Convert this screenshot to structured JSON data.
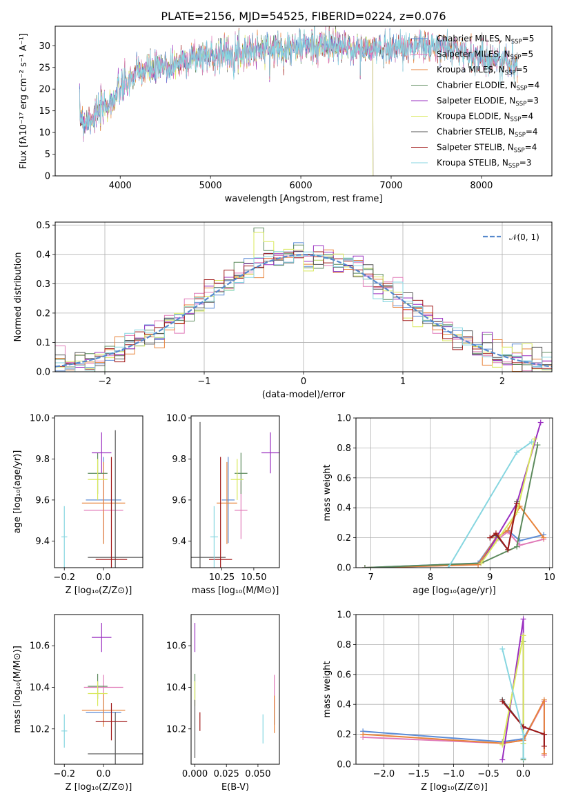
{
  "figure": {
    "title": "PLATE=2156, MJD=54525, FIBERID=0224, z=0.076"
  },
  "colors": {
    "chabrier_miles": "#5b8bd6",
    "salpeter_miles": "#e07ab8",
    "kroupa_miles": "#e8833a",
    "chabrier_elodie": "#5c8a5c",
    "salpeter_elodie": "#9a2fc0",
    "kroupa_elodie": "#d8e85a",
    "chabrier_stelib": "#555555",
    "salpeter_stelib": "#a01818",
    "kroupa_stelib": "#86d6e0"
  },
  "chart_data": [
    {
      "id": "spectrum",
      "type": "line",
      "xlabel": "wavelength [Angstrom, rest frame]",
      "ylabel": "Flux [fλ10⁻¹⁷ erg cm⁻² s⁻¹ A⁻¹]",
      "xlim": [
        3280,
        8780
      ],
      "ylim": [
        0,
        34.5
      ],
      "xticks": [
        4000,
        5000,
        6000,
        7000,
        8000
      ],
      "yticks": [
        0,
        5,
        10,
        15,
        20,
        25,
        30
      ],
      "continuum_x": [
        3550,
        3600,
        3700,
        3800,
        3900,
        4000,
        4100,
        4200,
        4300,
        4500,
        4700,
        4900,
        5100,
        5300,
        5500,
        5700,
        5900,
        6100,
        6300,
        6500,
        6700,
        6900,
        7100,
        7300,
        7500,
        7700,
        7900,
        8100,
        8300,
        8400
      ],
      "continuum_y": [
        14.0,
        12.5,
        13.5,
        15.5,
        17.0,
        20.0,
        22.0,
        24.0,
        24.5,
        25.0,
        26.5,
        27.5,
        28.0,
        28.5,
        29.0,
        29.5,
        29.5,
        30.0,
        30.0,
        29.5,
        29.0,
        29.5,
        29.5,
        30.0,
        29.5,
        29.0,
        28.0,
        27.0,
        26.0,
        25.5
      ],
      "legend_position": "upper right",
      "legend": [
        {
          "label": "Chabrier MILES, N",
          "sub": "SSP",
          "suffix": "=5",
          "color_key": "chabrier_miles"
        },
        {
          "label": "Salpeter MILES, N",
          "sub": "SSP",
          "suffix": "=5",
          "color_key": "salpeter_miles"
        },
        {
          "label": "Kroupa MILES, N",
          "sub": "SSP",
          "suffix": "=5",
          "color_key": "kroupa_miles"
        },
        {
          "label": "Chabrier ELODIE, N",
          "sub": "SSP",
          "suffix": "=4",
          "color_key": "chabrier_elodie"
        },
        {
          "label": "Salpeter ELODIE, N",
          "sub": "SSP",
          "suffix": "=3",
          "color_key": "salpeter_elodie"
        },
        {
          "label": "Kroupa ELODIE, N",
          "sub": "SSP",
          "suffix": "=4",
          "color_key": "kroupa_elodie"
        },
        {
          "label": "Chabrier STELIB, N",
          "sub": "SSP",
          "suffix": "=4",
          "color_key": "chabrier_stelib"
        },
        {
          "label": "Salpeter STELIB, N",
          "sub": "SSP",
          "suffix": "=4",
          "color_key": "salpeter_stelib"
        },
        {
          "label": "Kroupa STELIB, N",
          "sub": "SSP",
          "suffix": "=3",
          "color_key": "kroupa_stelib"
        }
      ]
    },
    {
      "id": "residuals",
      "type": "histogram",
      "xlabel": "(data-model)/error",
      "ylabel": "Normed distribution",
      "xlim": [
        -2.5,
        2.5
      ],
      "ylim": [
        0,
        0.51
      ],
      "xticks": [
        -2,
        -1,
        0,
        1,
        2
      ],
      "yticks": [
        0.0,
        0.1,
        0.2,
        0.3,
        0.4,
        0.5
      ],
      "grid": true,
      "legend": {
        "label": "𝒩(0, 1)",
        "position": "upper right"
      },
      "bin_width": 0.1,
      "reference_curve": "normal(0,1)"
    },
    {
      "id": "age-vs-Z",
      "type": "errorbar",
      "xlabel": "Z [log₁₀(Z/Z⊙)]",
      "ylabel": "age  [log₁₀(age/yr)]",
      "xlim": [
        -0.25,
        0.2
      ],
      "ylim": [
        9.27,
        10.01
      ],
      "xticks": [
        -0.2,
        0.0
      ],
      "yticks": [
        9.4,
        9.6,
        9.8,
        10.0
      ],
      "points": [
        {
          "key": "chabrier_miles",
          "x": 0.0,
          "y": 9.6,
          "xerr": 0.09,
          "yerr": 0.21
        },
        {
          "key": "salpeter_miles",
          "x": 0.0,
          "y": 9.55,
          "xerr": 0.1,
          "yerr": 0.14
        },
        {
          "key": "kroupa_miles",
          "x": 0.0,
          "y": 9.585,
          "xerr": 0.11,
          "yerr": 0.2
        },
        {
          "key": "chabrier_elodie",
          "x": -0.03,
          "y": 9.73,
          "xerr": 0.05,
          "yerr": 0.1
        },
        {
          "key": "salpeter_elodie",
          "x": -0.01,
          "y": 9.83,
          "xerr": 0.05,
          "yerr": 0.1
        },
        {
          "key": "kroupa_elodie",
          "x": -0.03,
          "y": 9.7,
          "xerr": 0.05,
          "yerr": 0.1
        },
        {
          "key": "chabrier_stelib",
          "x": 0.06,
          "y": 9.32,
          "xerr": 0.14,
          "yerr": 0.62
        },
        {
          "key": "salpeter_stelib",
          "x": 0.04,
          "y": 9.31,
          "xerr": 0.08,
          "yerr": 0.5
        },
        {
          "key": "kroupa_stelib",
          "x": -0.2,
          "y": 9.42,
          "xerr": 0.015,
          "yerr": 0.15
        }
      ]
    },
    {
      "id": "age-vs-mass",
      "type": "errorbar",
      "xlabel": "mass [log₁₀(M/M⊙)]",
      "ylabel": "",
      "xlim": [
        10.01,
        10.7
      ],
      "ylim": [
        9.27,
        10.01
      ],
      "xticks": [
        10.25,
        10.5
      ],
      "yticks": [
        9.4,
        9.6,
        9.8,
        10.0
      ],
      "points": [
        {
          "key": "chabrier_miles",
          "x": 10.3,
          "y": 9.6,
          "xerr": 0.05,
          "yerr": 0.21
        },
        {
          "key": "salpeter_miles",
          "x": 10.4,
          "y": 9.55,
          "xerr": 0.05,
          "yerr": 0.14
        },
        {
          "key": "kroupa_miles",
          "x": 10.29,
          "y": 9.585,
          "xerr": 0.08,
          "yerr": 0.2
        },
        {
          "key": "chabrier_elodie",
          "x": 10.4,
          "y": 9.73,
          "xerr": 0.05,
          "yerr": 0.1
        },
        {
          "key": "salpeter_elodie",
          "x": 10.63,
          "y": 9.83,
          "xerr": 0.07,
          "yerr": 0.1
        },
        {
          "key": "kroupa_elodie",
          "x": 10.37,
          "y": 9.7,
          "xerr": 0.05,
          "yerr": 0.1
        },
        {
          "key": "chabrier_stelib",
          "x": 10.08,
          "y": 9.32,
          "xerr": 0.2,
          "yerr": 0.66
        },
        {
          "key": "salpeter_stelib",
          "x": 10.24,
          "y": 9.31,
          "xerr": 0.09,
          "yerr": 0.5
        },
        {
          "key": "kroupa_stelib",
          "x": 10.19,
          "y": 9.42,
          "xerr": 0.03,
          "yerr": 0.15
        }
      ]
    },
    {
      "id": "mass-weight-vs-age",
      "type": "line",
      "xlabel": "age  [log₁₀(age/yr)]",
      "ylabel": "mass weight",
      "xlim": [
        6.75,
        10.05
      ],
      "ylim": [
        0,
        1.0
      ],
      "xticks": [
        7,
        8,
        9,
        10
      ],
      "yticks": [
        0.0,
        0.2,
        0.4,
        0.6,
        0.8,
        1.0
      ],
      "grid": true,
      "series": [
        {
          "key": "chabrier_miles",
          "x": [
            6.9,
            8.8,
            9.1,
            9.3,
            9.5,
            9.9
          ],
          "y": [
            0.0,
            0.03,
            0.2,
            0.25,
            0.18,
            0.22
          ]
        },
        {
          "key": "salpeter_miles",
          "x": [
            6.9,
            8.8,
            9.1,
            9.3,
            9.5,
            9.9
          ],
          "y": [
            0.0,
            0.02,
            0.18,
            0.24,
            0.15,
            0.19
          ]
        },
        {
          "key": "kroupa_miles",
          "x": [
            6.9,
            8.8,
            9.1,
            9.3,
            9.5,
            9.9
          ],
          "y": [
            0.0,
            0.02,
            0.2,
            0.25,
            0.41,
            0.2
          ]
        },
        {
          "key": "chabrier_elodie",
          "x": [
            6.9,
            8.85,
            9.45,
            9.8
          ],
          "y": [
            0.0,
            0.03,
            0.14,
            0.82
          ]
        },
        {
          "key": "salpeter_elodie",
          "x": [
            8.85,
            9.45,
            9.85
          ],
          "y": [
            0.03,
            0.43,
            0.97
          ]
        },
        {
          "key": "kroupa_elodie",
          "x": [
            8.85,
            9.45,
            9.75
          ],
          "y": [
            0.03,
            0.37,
            0.86
          ]
        },
        {
          "key": "chabrier_stelib",
          "x": [
            9.0,
            9.1,
            9.3,
            9.45
          ],
          "y": [
            0.2,
            0.22,
            0.12,
            0.44
          ]
        },
        {
          "key": "salpeter_stelib",
          "x": [
            9.0,
            9.1,
            9.3,
            9.45
          ],
          "y": [
            0.2,
            0.23,
            0.12,
            0.43
          ]
        },
        {
          "key": "kroupa_stelib",
          "x": [
            8.3,
            9.45,
            9.7
          ],
          "y": [
            0.0,
            0.77,
            0.84
          ]
        }
      ]
    },
    {
      "id": "mass-vs-Z",
      "type": "errorbar",
      "xlabel": "Z [log₁₀(Z/Z⊙)]",
      "ylabel": "mass [log₁₀(M/M⊙)]",
      "xlim": [
        -0.25,
        0.2
      ],
      "ylim": [
        10.03,
        10.75
      ],
      "xticks": [
        -0.2,
        0.0
      ],
      "yticks": [
        10.2,
        10.4,
        10.6
      ],
      "points": [
        {
          "key": "chabrier_miles",
          "x": 0.0,
          "y": 10.28,
          "xerr": 0.09,
          "yerr": 0.06
        },
        {
          "key": "salpeter_miles",
          "x": 0.0,
          "y": 10.4,
          "xerr": 0.1,
          "yerr": 0.06
        },
        {
          "key": "kroupa_miles",
          "x": 0.0,
          "y": 10.29,
          "xerr": 0.11,
          "yerr": 0.08
        },
        {
          "key": "chabrier_elodie",
          "x": -0.03,
          "y": 10.405,
          "xerr": 0.05,
          "yerr": 0.06
        },
        {
          "key": "salpeter_elodie",
          "x": -0.01,
          "y": 10.64,
          "xerr": 0.05,
          "yerr": 0.07
        },
        {
          "key": "kroupa_elodie",
          "x": -0.03,
          "y": 10.37,
          "xerr": 0.05,
          "yerr": 0.06
        },
        {
          "key": "chabrier_stelib",
          "x": 0.06,
          "y": 10.08,
          "xerr": 0.14,
          "yerr": 0.2
        },
        {
          "key": "salpeter_stelib",
          "x": 0.04,
          "y": 10.235,
          "xerr": 0.08,
          "yerr": 0.09
        },
        {
          "key": "kroupa_stelib",
          "x": -0.2,
          "y": 10.19,
          "xerr": 0.015,
          "yerr": 0.08
        }
      ]
    },
    {
      "id": "mass-vs-ebv",
      "type": "errorbar",
      "xlabel": "E(B-V)",
      "ylabel": "",
      "xlim": [
        -0.003,
        0.067
      ],
      "ylim": [
        10.03,
        10.75
      ],
      "xticks": [
        0.0,
        0.025,
        0.05
      ],
      "xtick_labels": [
        "0.000",
        "0.025",
        "0.050"
      ],
      "yticks": [
        10.2,
        10.4,
        10.6
      ],
      "points": [
        {
          "key": "chabrier_miles",
          "x": 0.063,
          "y": 10.28,
          "xerr": 0.0,
          "yerr": 0.06
        },
        {
          "key": "salpeter_miles",
          "x": 0.063,
          "y": 10.38,
          "xerr": 0.0,
          "yerr": 0.08
        },
        {
          "key": "kroupa_miles",
          "x": 0.063,
          "y": 10.27,
          "xerr": 0.0,
          "yerr": 0.09
        },
        {
          "key": "chabrier_elodie",
          "x": 0.0,
          "y": 10.405,
          "xerr": 0.0,
          "yerr": 0.06
        },
        {
          "key": "salpeter_elodie",
          "x": 0.0,
          "y": 10.64,
          "xerr": 0.0,
          "yerr": 0.07
        },
        {
          "key": "kroupa_elodie",
          "x": 0.0,
          "y": 10.37,
          "xerr": 0.0,
          "yerr": 0.06
        },
        {
          "key": "chabrier_stelib",
          "x": 0.0,
          "y": 10.2,
          "xerr": 0.0,
          "yerr": 0.14
        },
        {
          "key": "salpeter_stelib",
          "x": 0.004,
          "y": 10.235,
          "xerr": 0.0,
          "yerr": 0.045
        },
        {
          "key": "kroupa_stelib",
          "x": 0.054,
          "y": 10.2,
          "xerr": 0.0,
          "yerr": 0.07
        }
      ]
    },
    {
      "id": "mass-weight-vs-Z",
      "type": "line",
      "xlabel": "Z [log₁₀(Z/Z⊙)]",
      "ylabel": "mass weight",
      "xlim": [
        -2.4,
        0.42
      ],
      "ylim": [
        0,
        1.0
      ],
      "xticks": [
        -2.0,
        -1.5,
        -1.0,
        -0.5,
        0.0
      ],
      "yticks": [
        0.0,
        0.2,
        0.4,
        0.6,
        0.8,
        1.0
      ],
      "grid": true,
      "series": [
        {
          "key": "chabrier_miles",
          "x": [
            -2.3,
            -0.3,
            0.0,
            0.3,
            0.3
          ],
          "y": [
            0.22,
            0.15,
            0.17,
            0.42,
            0.2
          ]
        },
        {
          "key": "salpeter_miles",
          "x": [
            -2.3,
            -0.3,
            0.0,
            0.3,
            0.3
          ],
          "y": [
            0.18,
            0.14,
            0.16,
            0.42,
            0.06
          ]
        },
        {
          "key": "kroupa_miles",
          "x": [
            -2.3,
            -0.3,
            0.0,
            0.3,
            0.3
          ],
          "y": [
            0.2,
            0.14,
            0.16,
            0.43,
            0.07
          ]
        },
        {
          "key": "chabrier_elodie",
          "x": [
            0.0,
            0.0,
            0.0
          ],
          "y": [
            0.82,
            0.14,
            0.03
          ]
        },
        {
          "key": "salpeter_elodie",
          "x": [
            -0.3,
            0.0,
            0.0
          ],
          "y": [
            0.03,
            0.97,
            0.24
          ]
        },
        {
          "key": "kroupa_elodie",
          "x": [
            -0.3,
            0.0,
            0.0
          ],
          "y": [
            0.13,
            0.86,
            0.14
          ]
        },
        {
          "key": "chabrier_stelib",
          "x": [
            -0.3,
            0.0,
            0.3,
            0.3
          ],
          "y": [
            0.43,
            0.25,
            0.2,
            0.12
          ]
        },
        {
          "key": "salpeter_stelib",
          "x": [
            -0.3,
            0.0,
            0.3,
            0.3
          ],
          "y": [
            0.42,
            0.25,
            0.2,
            0.12
          ]
        },
        {
          "key": "kroupa_stelib",
          "x": [
            -0.3,
            0.0,
            0.0
          ],
          "y": [
            0.77,
            0.2,
            0.04
          ]
        }
      ]
    }
  ]
}
